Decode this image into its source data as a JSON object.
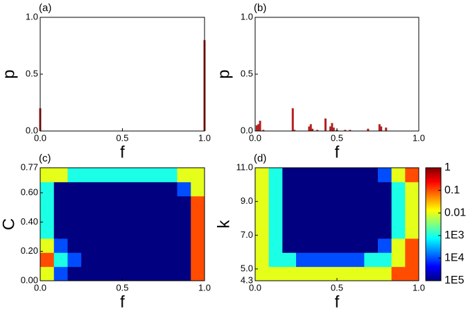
{
  "chart_data": [
    {
      "type": "bar",
      "panel_label": "(a)",
      "xlabel": "f",
      "ylabel": "p",
      "color": "#b22222",
      "x": [
        0,
        1
      ],
      "values": [
        0.2,
        0.8
      ],
      "xlim": [
        0,
        1
      ],
      "ylim": [
        0,
        1
      ],
      "xticks": [
        {
          "value": 0,
          "label": "0.0"
        },
        {
          "value": 0.5,
          "label": "0.5"
        },
        {
          "value": 1,
          "label": "1.0"
        }
      ],
      "yticks": [
        {
          "value": 0,
          "label": "0.0"
        },
        {
          "value": 0.5,
          "label": "0.5"
        },
        {
          "value": 1,
          "label": "1.0"
        }
      ]
    },
    {
      "type": "bar",
      "panel_label": "(b)",
      "xlabel": "f",
      "ylabel": "p",
      "color": "#b22222",
      "x": [
        0.01,
        0.02,
        0.03,
        0.05,
        0.23,
        0.24,
        0.33,
        0.34,
        0.35,
        0.38,
        0.43,
        0.46,
        0.47,
        0.48,
        0.5,
        0.55,
        0.58,
        0.69,
        0.76,
        0.77,
        0.8
      ],
      "values": [
        0.05,
        0.06,
        0.09,
        0.01,
        0.2,
        0.01,
        0.04,
        0.06,
        0.02,
        0.01,
        0.11,
        0.04,
        0.07,
        0.03,
        0.01,
        0.01,
        0.01,
        0.02,
        0.06,
        0.04,
        0.03
      ],
      "xlim": [
        0,
        1
      ],
      "ylim": [
        0,
        1
      ],
      "xticks": [
        {
          "value": 0,
          "label": "0.0"
        },
        {
          "value": 0.5,
          "label": "0.5"
        },
        {
          "value": 1,
          "label": "1.0"
        }
      ],
      "yticks": [
        {
          "value": 0,
          "label": "0.0"
        },
        {
          "value": 0.5,
          "label": "0.5"
        },
        {
          "value": 1,
          "label": "1.0"
        }
      ]
    },
    {
      "type": "heatmap",
      "panel_label": "(c)",
      "xlabel": "f",
      "ylabel": "C",
      "zscale": "log",
      "zlim": [
        1e-05,
        1
      ],
      "xlim": [
        0,
        1
      ],
      "ylim": [
        0,
        0.77
      ],
      "xticks": [
        {
          "value": 0,
          "label": "0.0"
        },
        {
          "value": 0.5,
          "label": "0.5"
        },
        {
          "value": 1,
          "label": "1.0"
        }
      ],
      "yticks": [
        {
          "value": 0,
          "label": "0.00"
        },
        {
          "value": 0.2,
          "label": "0.20"
        },
        {
          "value": 0.4,
          "label": "0.40"
        },
        {
          "value": 0.6,
          "label": "0.60"
        },
        0.77
      ],
      "z": [
        [
          0.01,
          0.0001,
          1e-05,
          1e-05,
          1e-05,
          1e-05,
          1e-05,
          1e-05,
          1e-05,
          1e-05,
          1e-05,
          0.1
        ],
        [
          0.1,
          0.001,
          0.0001,
          1e-05,
          1e-05,
          1e-05,
          1e-05,
          1e-05,
          1e-05,
          1e-05,
          1e-05,
          0.1
        ],
        [
          0.01,
          0.0001,
          1e-05,
          1e-05,
          1e-05,
          1e-05,
          1e-05,
          1e-05,
          1e-05,
          1e-05,
          1e-05,
          0.1
        ],
        [
          0.001,
          1e-05,
          1e-05,
          1e-05,
          1e-05,
          1e-05,
          1e-05,
          1e-05,
          1e-05,
          1e-05,
          1e-05,
          0.1
        ],
        [
          0.001,
          1e-05,
          1e-05,
          1e-05,
          1e-05,
          1e-05,
          1e-05,
          1e-05,
          1e-05,
          1e-05,
          1e-05,
          0.1
        ],
        [
          0.001,
          1e-05,
          1e-05,
          1e-05,
          1e-05,
          1e-05,
          1e-05,
          1e-05,
          1e-05,
          1e-05,
          1e-05,
          0.1
        ],
        [
          0.001,
          1e-05,
          1e-05,
          1e-05,
          1e-05,
          1e-05,
          1e-05,
          1e-05,
          1e-05,
          1e-05,
          0.0001,
          0.01
        ],
        [
          0.01,
          0.01,
          0.001,
          0.001,
          0.001,
          0.001,
          0.001,
          0.001,
          0.001,
          0.001,
          0.01,
          0.01
        ]
      ]
    },
    {
      "type": "heatmap",
      "panel_label": "(d)",
      "xlabel": "f",
      "ylabel": "k",
      "zscale": "log",
      "zlim": [
        1e-05,
        1
      ],
      "xlim": [
        0,
        1
      ],
      "ylim": [
        4.3,
        11
      ],
      "xticks": [
        {
          "value": 0,
          "label": "0.0"
        },
        {
          "value": 0.5,
          "label": "0.5"
        },
        {
          "value": 1,
          "label": "1.0"
        }
      ],
      "yticks": [
        4.3,
        {
          "value": 5,
          "label": "5.0"
        },
        {
          "value": 7,
          "label": "7.0"
        },
        {
          "value": 9,
          "label": "9.0"
        },
        {
          "value": 11,
          "label": "11.0"
        }
      ],
      "zticks": [
        1,
        0.1,
        0.01,
        {
          "value": 0.001,
          "label": "1E3"
        },
        {
          "value": 0.0001,
          "label": "1E4"
        },
        {
          "value": 1e-05,
          "label": "1E5"
        }
      ],
      "z": [
        [
          0.01,
          0.01,
          0.01,
          0.01,
          0.01,
          0.01,
          0.01,
          0.01,
          0.01,
          0.01,
          0.1,
          0.1
        ],
        [
          0.01,
          0.001,
          0.001,
          0.0001,
          0.0001,
          0.0001,
          0.0001,
          0.0001,
          0.001,
          0.001,
          0.01,
          0.1
        ],
        [
          0.01,
          0.001,
          1e-05,
          1e-05,
          1e-05,
          1e-05,
          1e-05,
          1e-05,
          1e-05,
          0.0001,
          0.01,
          0.1
        ],
        [
          0.01,
          0.001,
          1e-05,
          1e-05,
          1e-05,
          1e-05,
          1e-05,
          1e-05,
          1e-05,
          1e-05,
          0.001,
          0.01
        ],
        [
          0.01,
          0.001,
          1e-05,
          1e-05,
          1e-05,
          1e-05,
          1e-05,
          1e-05,
          1e-05,
          1e-05,
          0.001,
          0.01
        ],
        [
          0.01,
          0.001,
          1e-05,
          1e-05,
          1e-05,
          1e-05,
          1e-05,
          1e-05,
          1e-05,
          1e-05,
          0.001,
          0.01
        ],
        [
          0.01,
          0.001,
          1e-05,
          1e-05,
          1e-05,
          1e-05,
          1e-05,
          1e-05,
          1e-05,
          1e-05,
          0.001,
          0.01
        ],
        [
          0.01,
          0.001,
          1e-05,
          1e-05,
          1e-05,
          1e-05,
          1e-05,
          1e-05,
          1e-05,
          0.0001,
          0.01,
          0.1
        ]
      ]
    }
  ]
}
